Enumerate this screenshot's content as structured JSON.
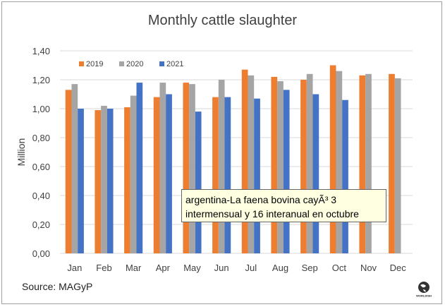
{
  "chart_data": {
    "type": "bar",
    "title": "Monthly cattle slaughter",
    "ylabel": "Million",
    "xlabel": "",
    "ylim": [
      0,
      1.4
    ],
    "yticks": [
      "0,00",
      "0,20",
      "0,40",
      "0,60",
      "0,80",
      "1,00",
      "1,20",
      "1,40"
    ],
    "grid": true,
    "legend_position": "top-left",
    "categories": [
      "Jan",
      "Feb",
      "Mar",
      "Apr",
      "May",
      "Jun",
      "Jul",
      "Aug",
      "Sep",
      "Oct",
      "Nov",
      "Dec"
    ],
    "series": [
      {
        "name": "2019",
        "color": "#ed7d31",
        "values": [
          1.13,
          0.99,
          1.01,
          1.08,
          1.18,
          1.08,
          1.27,
          1.22,
          1.2,
          1.3,
          1.23,
          1.24
        ]
      },
      {
        "name": "2020",
        "color": "#a5a5a5",
        "values": [
          1.17,
          1.02,
          1.09,
          1.18,
          1.17,
          1.2,
          1.23,
          1.19,
          1.24,
          1.26,
          1.24,
          1.21
        ]
      },
      {
        "name": "2021",
        "color": "#4472c4",
        "values": [
          1.0,
          1.0,
          1.18,
          1.1,
          0.98,
          1.08,
          1.07,
          1.13,
          1.1,
          1.06,
          null,
          null
        ]
      }
    ],
    "source": "Source: MAGyP"
  },
  "tooltip": "argentina-La faena bovina cayÃ³ 3 intermensual y 16 interanual en octubre",
  "logo_text": "WORLDISH"
}
